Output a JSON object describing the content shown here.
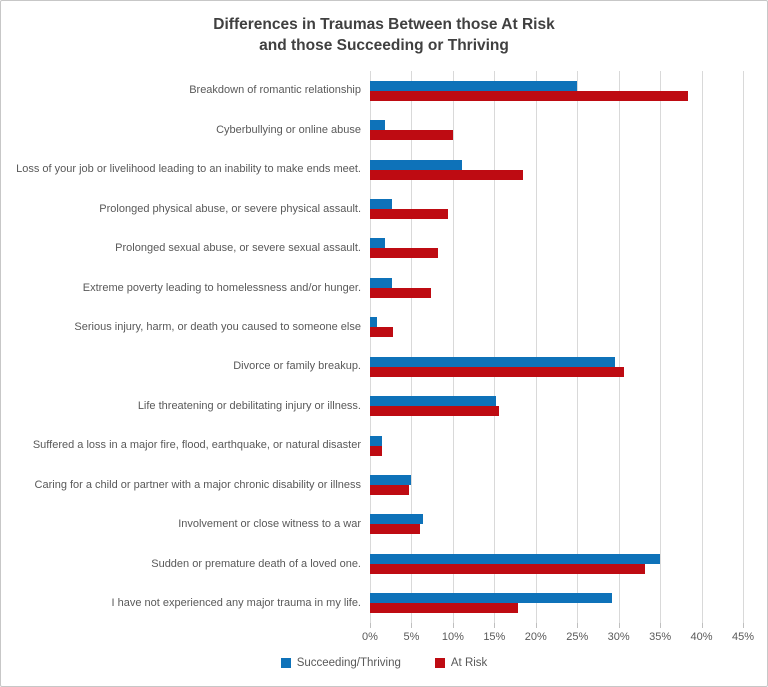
{
  "title": {
    "line1": "Differences in Traumas Between those At Risk",
    "line2": "and those Succeeding or Thriving"
  },
  "colors": {
    "title_text": "#404040",
    "axis_text": "#595959",
    "gridline": "#d9d9d9",
    "tick": "#bfbfbf",
    "series_blue": "#0e72b9",
    "series_red": "#be0b12"
  },
  "chart_data": {
    "type": "bar",
    "orientation": "horizontal",
    "title": "Differences in Traumas Between those At Risk and those Succeeding or Thriving",
    "xlabel": "",
    "ylabel": "",
    "xlim": [
      0,
      45
    ],
    "x_ticks": [
      "0%",
      "5%",
      "10%",
      "15%",
      "20%",
      "25%",
      "30%",
      "35%",
      "40%",
      "45%"
    ],
    "grid": "vertical",
    "legend_position": "bottom",
    "categories": [
      "Breakdown of romantic relationship",
      "Cyberbullying or online abuse",
      "Loss of your job or livelihood leading to an inability to make ends meet.",
      "Prolonged physical abuse, or severe physical assault.",
      "Prolonged sexual abuse, or severe sexual assault.",
      "Extreme poverty leading to homelessness and/or hunger.",
      "Serious injury, harm, or death you caused to someone else",
      "Divorce or family breakup.",
      "Life threatening or debilitating injury or illness.",
      "Suffered a loss in a major fire, flood, earthquake, or natural disaster",
      "Caring for a child or partner with a major chronic disability or illness",
      "Involvement or close witness to a war",
      "Sudden or premature death of a loved one.",
      "I have not experienced any major trauma in my life."
    ],
    "series": [
      {
        "name": "Succeeding/Thriving",
        "color": "#0e72b9",
        "values": [
          25.0,
          1.8,
          11.1,
          2.6,
          1.8,
          2.6,
          0.8,
          29.6,
          15.2,
          1.4,
          5.0,
          6.4,
          35.0,
          29.2
        ]
      },
      {
        "name": "At Risk",
        "color": "#be0b12",
        "values": [
          38.4,
          10.0,
          18.5,
          9.4,
          8.2,
          7.3,
          2.8,
          30.6,
          15.6,
          1.4,
          4.7,
          6.0,
          33.2,
          17.8
        ]
      }
    ]
  }
}
